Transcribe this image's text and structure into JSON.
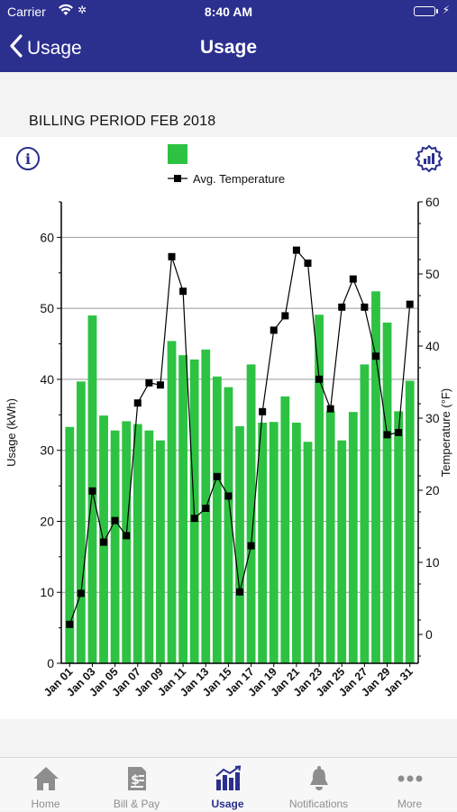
{
  "status_bar": {
    "carrier": "Carrier",
    "time": "8:40 AM",
    "wifi_icon": "wifi-icon",
    "battery_icon": "battery-icon"
  },
  "nav": {
    "back_label": "Usage",
    "title": "Usage"
  },
  "billing_period": {
    "label": "BILLING PERIOD FEB 2018"
  },
  "colors": {
    "accent": "#2b2f8e",
    "bar": "#2ec243",
    "temp_line": "#000000"
  },
  "chart_data": {
    "type": "bar",
    "categories": [
      "Jan 01",
      "Jan 02",
      "Jan 03",
      "Jan 04",
      "Jan 05",
      "Jan 06",
      "Jan 07",
      "Jan 08",
      "Jan 09",
      "Jan 10",
      "Jan 11",
      "Jan 12",
      "Jan 13",
      "Jan 14",
      "Jan 15",
      "Jan 16",
      "Jan 17",
      "Jan 18",
      "Jan 19",
      "Jan 20",
      "Jan 21",
      "Jan 22",
      "Jan 23",
      "Jan 24",
      "Jan 25",
      "Jan 26",
      "Jan 27",
      "Jan 28",
      "Jan 29",
      "Jan 30",
      "Jan 31"
    ],
    "tick_labels": [
      "Jan 01",
      "Jan 03",
      "Jan 05",
      "Jan 07",
      "Jan 09",
      "Jan 11",
      "Jan 13",
      "Jan 15",
      "Jan 17",
      "Jan 19",
      "Jan 21",
      "Jan 23",
      "Jan 25",
      "Jan 27",
      "Jan 29",
      "Jan 31"
    ],
    "series": [
      {
        "kind": "bar",
        "axis": "left",
        "values": [
          33.3,
          39.7,
          49.0,
          34.9,
          32.8,
          34.1,
          33.7,
          32.8,
          31.4,
          45.4,
          43.4,
          42.8,
          44.2,
          40.4,
          38.9,
          33.4,
          42.1,
          33.9,
          34.0,
          37.6,
          33.9,
          31.2,
          49.1,
          35.5,
          31.4,
          35.4,
          42.1,
          52.4,
          48.0,
          35.5,
          39.8
        ]
      },
      {
        "kind": "line",
        "axis": "right",
        "name": "Avg. Temperature",
        "values": [
          1.4,
          5.7,
          19.9,
          12.8,
          15.8,
          13.7,
          32.1,
          34.9,
          34.6,
          52.4,
          47.6,
          16.1,
          17.5,
          21.9,
          19.2,
          5.9,
          12.3,
          30.9,
          42.2,
          44.2,
          53.3,
          51.5,
          35.4,
          31.3,
          45.4,
          49.3,
          45.4,
          38.6,
          27.7,
          28.0,
          45.8
        ]
      }
    ],
    "y_left": {
      "label": "Usage (kWh)",
      "range": [
        0,
        65
      ],
      "ticks": [
        0,
        10,
        20,
        30,
        40,
        50,
        60
      ]
    },
    "y_right": {
      "label": "Temperature (°F)",
      "range": [
        -4,
        60
      ],
      "ticks": [
        0,
        10,
        20,
        30,
        40,
        50,
        60
      ]
    },
    "gridlines_at": [
      10,
      20,
      30,
      40,
      50,
      60
    ],
    "legend": {
      "placement": "top-center",
      "bar_swatch": true,
      "line_label": "Avg. Temperature"
    }
  },
  "tabs": [
    {
      "label": "Home",
      "icon": "home-icon",
      "active": false
    },
    {
      "label": "Bill & Pay",
      "icon": "bill-icon",
      "active": false
    },
    {
      "label": "Usage",
      "icon": "usage-chart-icon",
      "active": true
    },
    {
      "label": "Notifications",
      "icon": "bell-icon",
      "active": false
    },
    {
      "label": "More",
      "icon": "more-dots-icon",
      "active": false
    }
  ]
}
